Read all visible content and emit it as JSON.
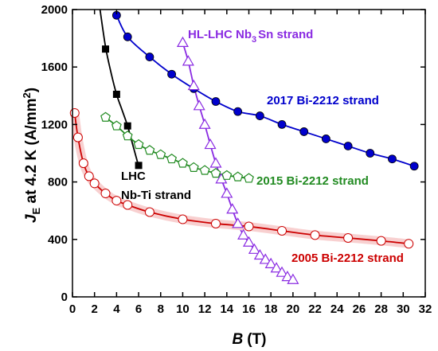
{
  "chart_data": {
    "type": "line",
    "xlabel": {
      "main": "B",
      "unit": "(T)"
    },
    "ylabel": {
      "main": "J",
      "sub": "E",
      "mid": " at 4.2 K (A/mm",
      "sup": "2",
      "end": ")"
    },
    "xlim": [
      0,
      32
    ],
    "ylim": [
      0,
      2000
    ],
    "xticks": [
      0,
      2,
      4,
      6,
      8,
      10,
      12,
      14,
      16,
      18,
      20,
      22,
      24,
      26,
      28,
      30,
      32
    ],
    "yticks": [
      0,
      400,
      800,
      1200,
      1600,
      2000
    ],
    "grid": false,
    "legend": "none",
    "annotations": {
      "nbsn": {
        "main": "HL-LHC Nb",
        "sub": "3",
        "end": "Sn strand",
        "color": "#8a2be2"
      },
      "bi2017": {
        "text": "2017 Bi-2212 strand",
        "color": "#0000cc"
      },
      "bi2015": {
        "text": "2015 Bi-2212 strand",
        "color": "#228b22"
      },
      "bi2005": {
        "text": "2005 Bi-2212 strand",
        "color": "#cc0000"
      },
      "nbti1": {
        "text": "LHC",
        "color": "#000000"
      },
      "nbti2": {
        "text": "Nb-Ti strand",
        "color": "#000000"
      }
    },
    "series": [
      {
        "id": "nbti",
        "color": "#000000",
        "marker": "square",
        "fit": [
          [
            2.5,
            2000
          ],
          [
            3,
            1740
          ],
          [
            3.5,
            1560
          ],
          [
            4,
            1410
          ],
          [
            4.5,
            1300
          ],
          [
            5,
            1190
          ],
          [
            5.5,
            1050
          ],
          [
            6,
            910
          ]
        ],
        "x": [
          3,
          4,
          5,
          6
        ],
        "y": [
          1725,
          1410,
          1190,
          915
        ]
      },
      {
        "id": "bi2017",
        "color": "#0000cc",
        "marker": "circle-filled",
        "x": [
          4,
          5,
          7,
          9,
          11,
          13,
          15,
          17,
          19,
          21,
          23,
          25,
          27,
          29,
          31
        ],
        "y": [
          1960,
          1810,
          1670,
          1550,
          1450,
          1360,
          1290,
          1260,
          1200,
          1150,
          1100,
          1050,
          1000,
          960,
          910
        ]
      },
      {
        "id": "nb3sn",
        "color": "#8a2be2",
        "marker": "triangle",
        "x": [
          10,
          10.5,
          11,
          11.5,
          12,
          12.5,
          13,
          13.5,
          14,
          14.5,
          15,
          15.5,
          16,
          16.5,
          17,
          17.5,
          18,
          18.5,
          19,
          19.5,
          20
        ],
        "y": [
          1770,
          1640,
          1470,
          1330,
          1200,
          1060,
          930,
          820,
          720,
          610,
          510,
          430,
          380,
          330,
          290,
          260,
          230,
          200,
          170,
          140,
          120
        ]
      },
      {
        "id": "bi2015",
        "color": "#228b22",
        "marker": "pentagon",
        "x": [
          3,
          4,
          5,
          6,
          7,
          8,
          9,
          10,
          11,
          12,
          13,
          14,
          15,
          16
        ],
        "y": [
          1250,
          1190,
          1120,
          1060,
          1020,
          990,
          960,
          930,
          900,
          880,
          860,
          845,
          835,
          825
        ]
      },
      {
        "id": "bi2005",
        "color": "#cc0000",
        "marker": "circle-open",
        "x": [
          0.2,
          0.5,
          1,
          1.5,
          2,
          3,
          4,
          5,
          7,
          10,
          13,
          16,
          19,
          22,
          25,
          28,
          30.5
        ],
        "y": [
          1280,
          1110,
          930,
          840,
          790,
          720,
          670,
          640,
          590,
          540,
          510,
          490,
          460,
          430,
          410,
          390,
          370
        ]
      }
    ]
  }
}
